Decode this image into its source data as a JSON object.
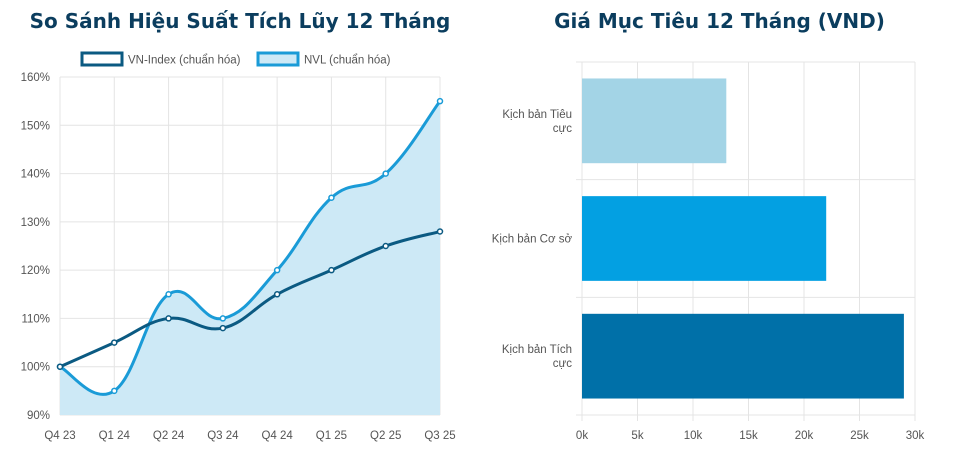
{
  "chart_data": [
    {
      "type": "line",
      "title": "So Sánh Hiệu Suất Tích Lũy 12 Tháng",
      "categories": [
        "Q4 23",
        "Q1 24",
        "Q2 24",
        "Q3 24",
        "Q4 24",
        "Q1 25",
        "Q2 25",
        "Q3 25"
      ],
      "y_ticks": [
        "90%",
        "100%",
        "110%",
        "120%",
        "130%",
        "140%",
        "150%",
        "160%"
      ],
      "ylim": [
        90,
        160
      ],
      "legend_position": "top",
      "grid": true,
      "series": [
        {
          "name": "VN-Index (chuẩn hóa)",
          "values": [
            100,
            105,
            110,
            108,
            115,
            120,
            125,
            128
          ],
          "color": "#0b5a82",
          "fill": false
        },
        {
          "name": "NVL (chuẩn hóa)",
          "values": [
            100,
            95,
            115,
            110,
            120,
            135,
            140,
            155
          ],
          "color": "#1a9bd7",
          "fill": true,
          "fill_color": "#cde9f6"
        }
      ]
    },
    {
      "type": "bar",
      "orientation": "horizontal",
      "title": "Giá Mục Tiêu 12 Tháng (VND)",
      "categories": [
        [
          "Kịch bản Tiêu",
          "cực"
        ],
        [
          "Kịch bản Cơ sở"
        ],
        [
          "Kịch bản Tích",
          "cực"
        ]
      ],
      "values": [
        13000,
        22000,
        29000
      ],
      "colors": [
        "#a3d4e6",
        "#03a0e2",
        "#0070a8"
      ],
      "x_ticks": [
        "0k",
        "5k",
        "10k",
        "15k",
        "20k",
        "25k",
        "30k"
      ],
      "xlim": [
        0,
        30000
      ],
      "grid": true
    }
  ]
}
